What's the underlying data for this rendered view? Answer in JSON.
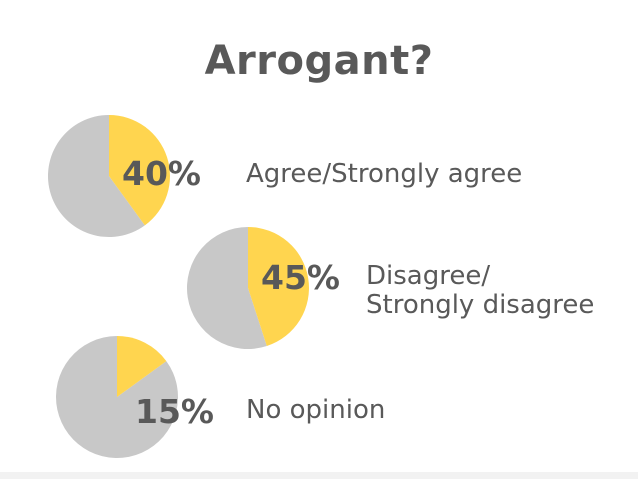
{
  "title": "Arrogant?",
  "colors": {
    "highlight": "#FFD54F",
    "rest": "#C8C8C8",
    "text": "#595959"
  },
  "chart_data": {
    "type": "pie",
    "title": "Arrogant?",
    "series": [
      {
        "name": "Agree/Strongly agree",
        "value": 40,
        "value_label": "40%",
        "label_lines": [
          "Agree/Strongly agree"
        ]
      },
      {
        "name": "Disagree/ Strongly disagree",
        "value": 45,
        "value_label": "45%",
        "label_lines": [
          "Disagree/",
          "Strongly disagree"
        ]
      },
      {
        "name": "No opinion",
        "value": 15,
        "value_label": "15%",
        "label_lines": [
          "No opinion"
        ]
      }
    ]
  }
}
